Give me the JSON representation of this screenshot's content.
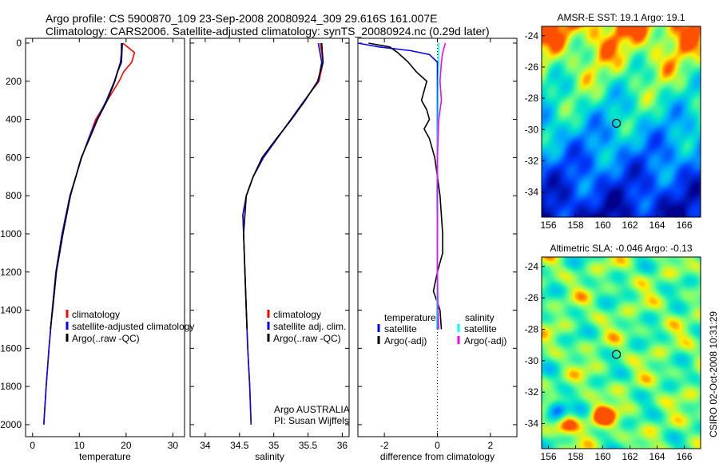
{
  "title_line1": "Argo profile: CS 5900870_109 23-Sep-2008 20080924_309 29.616S 161.007E",
  "title_line2": "Climatology: CARS2006. Satellite-adjusted climatology: synTS_20080924.nc (0.29d later)",
  "side_label": "CSIRO 02-Oct-2008 10:31:29",
  "colors": {
    "clim": "#ff0000",
    "sat": "#0000ff",
    "argo": "#000000",
    "sal_sat": "#00ffff",
    "sal_argo": "#ff00ff"
  },
  "chart_data": [
    {
      "type": "line",
      "id": "temp",
      "xlabel": "temperature",
      "xlim": [
        -1.5,
        32.5
      ],
      "ylim": [
        -25,
        2063
      ],
      "xticks": [
        0,
        10,
        20,
        30
      ],
      "yticks": [
        0,
        200,
        400,
        600,
        800,
        1000,
        1200,
        1400,
        1600,
        1800,
        2000
      ],
      "legend": [
        "climatology",
        "satellite-adjusted climatology",
        "Argo(..raw -QC)"
      ],
      "legend_position": "bottom-right",
      "series": [
        {
          "name": "climatology",
          "color": "#ff0000",
          "depth": [
            0,
            50,
            100,
            150,
            200,
            300,
            400,
            500,
            600,
            800,
            1000,
            1200,
            1400,
            1600,
            1800,
            2000
          ],
          "values": [
            19.3,
            21.8,
            21.2,
            19.5,
            18.5,
            16,
            13.5,
            12,
            10.5,
            8,
            6.3,
            5,
            4.2,
            3.5,
            2.9,
            2.4
          ]
        },
        {
          "name": "satellite-adjusted climatology",
          "color": "#0000ff",
          "depth": [
            0,
            50,
            100,
            200,
            300,
            400,
            500,
            600,
            800,
            1000,
            1200,
            1400,
            1600,
            1800,
            2000
          ],
          "values": [
            19,
            19,
            18.8,
            17.5,
            15.8,
            13.8,
            12,
            10.5,
            8,
            6.3,
            5,
            4.2,
            3.5,
            2.9,
            2.4
          ]
        },
        {
          "name": "Argo(..raw -QC)",
          "color": "#000000",
          "depth": [
            0,
            100,
            150,
            200,
            300,
            400,
            500,
            600,
            800,
            1000,
            1200,
            1400,
            1500
          ],
          "values": [
            19.2,
            19,
            18.2,
            17.6,
            16,
            13.9,
            12.2,
            10.4,
            8.1,
            6.5,
            5.1,
            4.3,
            3.8
          ]
        }
      ]
    },
    {
      "type": "line",
      "id": "sal",
      "xlabel": "salinity",
      "xlim": [
        33.78,
        36.1
      ],
      "ylim": [
        -25,
        2063
      ],
      "xticks": [
        34,
        34.5,
        35,
        35.5,
        36
      ],
      "legend": [
        "climatology",
        "satellite adj. clim.",
        "Argo(..raw -QC)"
      ],
      "legend_position": "bottom-right",
      "annotation": [
        "Argo AUSTRALIA",
        "PI: Susan Wijffels"
      ],
      "series": [
        {
          "name": "climatology",
          "color": "#ff0000",
          "depth": [
            0,
            100,
            200,
            300,
            400,
            500,
            600,
            700,
            800,
            900,
            1000,
            1200,
            1400,
            1600,
            1800,
            2000
          ],
          "values": [
            35.68,
            35.72,
            35.66,
            35.45,
            35.25,
            35.05,
            34.85,
            34.7,
            34.6,
            34.55,
            34.56,
            34.58,
            34.6,
            34.62,
            34.65,
            34.67
          ]
        },
        {
          "name": "satellite adj. clim.",
          "color": "#0000ff",
          "depth": [
            0,
            100,
            200,
            300,
            400,
            500,
            600,
            700,
            800,
            900,
            1000,
            1200,
            1400,
            1600,
            1800,
            2000
          ],
          "values": [
            35.65,
            35.7,
            35.65,
            35.45,
            35.25,
            35.05,
            34.85,
            34.7,
            34.6,
            34.55,
            34.56,
            34.58,
            34.6,
            34.62,
            34.65,
            34.67
          ]
        },
        {
          "name": "Argo(..raw -QC)",
          "color": "#000000",
          "depth": [
            0,
            100,
            200,
            300,
            400,
            500,
            600,
            700,
            800,
            1000,
            1200,
            1400,
            1500
          ],
          "values": [
            35.7,
            35.72,
            35.64,
            35.46,
            35.26,
            35.04,
            34.83,
            34.7,
            34.6,
            34.56,
            34.58,
            34.6,
            34.61
          ]
        }
      ]
    },
    {
      "type": "line",
      "id": "diff",
      "xlabel": "difference from climatology",
      "xlim": [
        -3,
        3
      ],
      "ylim": [
        -25,
        2063
      ],
      "xticks": [
        -2,
        0,
        2
      ],
      "legend_temp_title": "temperature",
      "legend_sal_title": "salinity",
      "legend": [
        "satellite",
        "Argo(-adj)",
        "satellite",
        "Argo(-adj)"
      ],
      "series": [
        {
          "name": "temperature satellite",
          "color": "#0000ff",
          "depth": [
            0,
            20,
            40,
            60,
            100,
            200,
            400,
            600,
            800,
            1000,
            1200,
            1400,
            1500
          ],
          "values": [
            -3,
            -2.2,
            -1,
            -0.3,
            0,
            0,
            0,
            0,
            0,
            0,
            0,
            0,
            0
          ]
        },
        {
          "name": "temperature Argo(-adj)",
          "color": "#000000",
          "depth": [
            0,
            20,
            50,
            100,
            150,
            200,
            250,
            300,
            350,
            400,
            450,
            500,
            600,
            800,
            1000,
            1100,
            1200,
            1300,
            1400,
            1500
          ],
          "values": [
            -2.6,
            -1.8,
            -1.5,
            -1.1,
            -0.8,
            -0.4,
            -0.5,
            -0.6,
            -0.4,
            -0.3,
            -0.5,
            -0.3,
            -0.1,
            0.1,
            0.2,
            0.2,
            0,
            -0.15,
            0.1,
            0.15
          ]
        },
        {
          "name": "salinity satellite",
          "color": "#00ffff",
          "depth": [
            0,
            100,
            200,
            400,
            600,
            800,
            1000,
            1200,
            1400,
            1500
          ],
          "values": [
            0.05,
            0.05,
            0.03,
            0.02,
            0,
            -0.02,
            0,
            0,
            -0.02,
            -0.02
          ]
        },
        {
          "name": "salinity Argo(-adj)",
          "color": "#ff00ff",
          "depth": [
            0,
            50,
            100,
            200,
            300,
            400,
            600,
            800,
            1000,
            1200,
            1400,
            1500
          ],
          "values": [
            0.3,
            0.2,
            0.15,
            0.1,
            0.15,
            0.05,
            0,
            0,
            0,
            0,
            0.02,
            0.05
          ]
        }
      ]
    }
  ],
  "maps": [
    {
      "title": "AMSR-E SST: 19.1 Argo: 19.1",
      "xticks": [
        156,
        158,
        160,
        162,
        164,
        166
      ],
      "yticks": [
        -24,
        -26,
        -28,
        -30,
        -32,
        -34
      ],
      "lon": [
        155.5,
        167.2
      ],
      "lat": [
        -23.4,
        -35.6
      ],
      "marker": [
        161.0,
        -29.6
      ]
    },
    {
      "title": "Altimetric SLA: -0.046 Argo: -0.13",
      "xticks": [
        156,
        158,
        160,
        162,
        164,
        166
      ],
      "yticks": [
        -24,
        -26,
        -28,
        -30,
        -32,
        -34
      ],
      "lon": [
        155.5,
        167.2
      ],
      "lat": [
        -23.4,
        -35.6
      ],
      "marker": [
        161.0,
        -29.6
      ]
    }
  ]
}
